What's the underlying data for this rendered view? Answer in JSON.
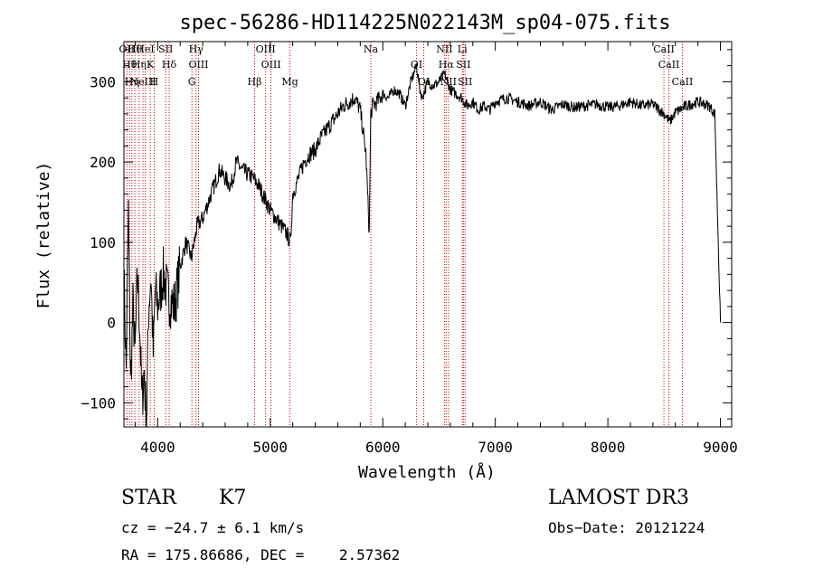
{
  "chart_data": {
    "type": "line",
    "title": "spec-56286-HD114225N022143M_sp04-075.fits",
    "xlabel": "Wavelength (Å)",
    "ylabel": "Flux (relative)",
    "xlim": [
      3700,
      9100
    ],
    "ylim": [
      -130,
      350
    ],
    "xticks": [
      4000,
      5000,
      6000,
      7000,
      8000,
      9000
    ],
    "yticks": [
      -100,
      0,
      100,
      200,
      300
    ],
    "grid": false,
    "line_color": "#000000",
    "marker_color": "#cc0000",
    "series": [
      {
        "x": [
          3700,
          3720,
          3740,
          3760,
          3780,
          3800,
          3820,
          3840,
          3860,
          3880,
          3900,
          3920,
          3940,
          3960,
          3980,
          4000,
          4050,
          4100,
          4150,
          4200,
          4250,
          4300,
          4350,
          4400,
          4450,
          4500,
          4550,
          4600,
          4650,
          4700,
          4750,
          4800,
          4850,
          4900,
          4950,
          5000,
          5050,
          5100,
          5150,
          5180,
          5200,
          5250,
          5300,
          5350,
          5400,
          5450,
          5500,
          5550,
          5600,
          5650,
          5700,
          5750,
          5800,
          5850,
          5880,
          5893,
          5910,
          5950,
          6000,
          6050,
          6100,
          6150,
          6200,
          6250,
          6300,
          6330,
          6350,
          6400,
          6450,
          6500,
          6550,
          6600,
          6650,
          6700,
          6750,
          6800,
          6850,
          6900,
          6950,
          7000,
          7100,
          7200,
          7300,
          7400,
          7500,
          7600,
          7700,
          7800,
          7900,
          8000,
          8100,
          8200,
          8300,
          8400,
          8500,
          8550,
          8600,
          8700,
          8800,
          8900,
          8950,
          9000
        ],
        "y": [
          60,
          -60,
          140,
          -80,
          20,
          -40,
          60,
          0,
          -100,
          -60,
          -130,
          20,
          60,
          -40,
          40,
          20,
          60,
          30,
          20,
          70,
          100,
          80,
          120,
          130,
          150,
          170,
          190,
          180,
          170,
          200,
          190,
          185,
          180,
          170,
          155,
          140,
          130,
          120,
          110,
          100,
          160,
          180,
          200,
          210,
          215,
          230,
          240,
          250,
          260,
          270,
          275,
          280,
          265,
          210,
          110,
          260,
          270,
          275,
          285,
          280,
          290,
          285,
          270,
          300,
          320,
          290,
          280,
          300,
          295,
          300,
          310,
          290,
          285,
          280,
          270,
          275,
          265,
          270,
          265,
          275,
          280,
          275,
          270,
          275,
          265,
          272,
          268,
          270,
          272,
          268,
          270,
          275,
          270,
          272,
          260,
          250,
          262,
          270,
          275,
          270,
          260,
          0
        ]
      }
    ],
    "lines": [
      {
        "x": 3727,
        "labels": [
          "OII"
        ]
      },
      {
        "x": 3750,
        "labels": [
          "Hθ"
        ]
      },
      {
        "x": 3771,
        "labels": [
          "Hη"
        ]
      },
      {
        "x": 3798,
        "labels": [
          "Hθ"
        ]
      },
      {
        "x": 3835,
        "labels": [
          "Hη"
        ]
      },
      {
        "x": 3869,
        "labels": [
          "NeIII"
        ]
      },
      {
        "x": 3889,
        "labels": [
          "HeI"
        ]
      },
      {
        "x": 3934,
        "labels": [
          "K"
        ]
      },
      {
        "x": 3969,
        "labels": [
          "H"
        ]
      },
      {
        "x": 4072,
        "labels": [
          "SII"
        ]
      },
      {
        "x": 4102,
        "labels": [
          "Hδ"
        ]
      },
      {
        "x": 4304,
        "labels": [
          "G"
        ]
      },
      {
        "x": 4341,
        "labels": [
          "Hγ"
        ]
      },
      {
        "x": 4363,
        "labels": [
          "OIII"
        ]
      },
      {
        "x": 4861,
        "labels": [
          "Hβ"
        ]
      },
      {
        "x": 4959,
        "labels": [
          "OIII"
        ]
      },
      {
        "x": 5007,
        "labels": [
          "OIII"
        ]
      },
      {
        "x": 5175,
        "labels": [
          "Mg"
        ]
      },
      {
        "x": 5894,
        "labels": [
          "Na"
        ]
      },
      {
        "x": 6300,
        "labels": [
          "OI"
        ]
      },
      {
        "x": 6364,
        "labels": [
          "OI"
        ]
      },
      {
        "x": 6548,
        "labels": [
          "NII"
        ]
      },
      {
        "x": 6563,
        "labels": [
          "Hα"
        ]
      },
      {
        "x": 6583,
        "labels": [
          "NII"
        ]
      },
      {
        "x": 6707,
        "labels": [
          "Li"
        ]
      },
      {
        "x": 6716,
        "labels": [
          "SII"
        ]
      },
      {
        "x": 6731,
        "labels": [
          "SII"
        ]
      },
      {
        "x": 8498,
        "labels": [
          "CaII"
        ]
      },
      {
        "x": 8542,
        "labels": [
          "CaII"
        ]
      },
      {
        "x": 8662,
        "labels": [
          "CaII"
        ]
      }
    ]
  },
  "info": {
    "type": "STAR",
    "subclass": "K7",
    "survey": "LAMOST DR3",
    "cz": "cz = −24.7 ± 6.1 km/s",
    "obs_date": "Obs−Date: 20121224",
    "radec": "RA = 175.86686, DEC =    2.57362"
  }
}
